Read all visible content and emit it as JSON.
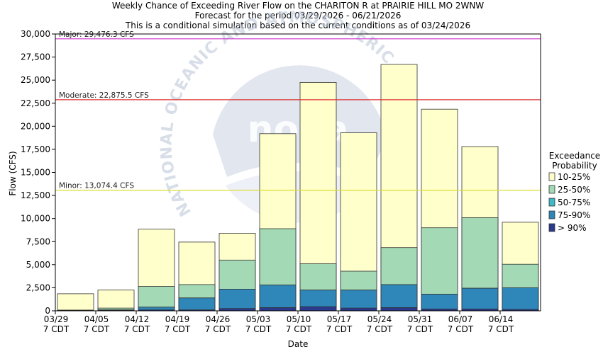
{
  "chart_data": {
    "type": "bar",
    "title_lines": [
      "Weekly Chance of Exceeding River Flow on the CHARITON R at PRAIRIE HILL MO 2WNW",
      "Forecast for the period 03/29/2026 - 06/21/2026",
      "This is a conditional simulation based on the current conditions as of 03/24/2026"
    ],
    "xlabel": "Date",
    "ylabel": "Flow (CFS)",
    "ylim": [
      0,
      30000
    ],
    "yticks": [
      0,
      2500,
      5000,
      7500,
      10000,
      12500,
      15000,
      17500,
      20000,
      22500,
      25000,
      27500,
      30000
    ],
    "ytick_labels": [
      "0",
      "2,500",
      "5,000",
      "7,500",
      "10,000",
      "12,500",
      "15,000",
      "17,500",
      "20,000",
      "22,500",
      "25,000",
      "27,500",
      "30,000"
    ],
    "tick_labels": [
      {
        "date": "03/29",
        "tz": "7 CDT"
      },
      {
        "date": "04/05",
        "tz": "7 CDT"
      },
      {
        "date": "04/12",
        "tz": "7 CDT"
      },
      {
        "date": "04/19",
        "tz": "7 CDT"
      },
      {
        "date": "04/26",
        "tz": "7 CDT"
      },
      {
        "date": "05/03",
        "tz": "7 CDT"
      },
      {
        "date": "05/10",
        "tz": "7 CDT"
      },
      {
        "date": "05/17",
        "tz": "7 CDT"
      },
      {
        "date": "05/24",
        "tz": "7 CDT"
      },
      {
        "date": "05/31",
        "tz": "7 CDT"
      },
      {
        "date": "06/07",
        "tz": "7 CDT"
      },
      {
        "date": "06/14",
        "tz": "7 CDT"
      }
    ],
    "legend_title": [
      "Exceedance",
      "Probability"
    ],
    "series": [
      {
        "name": "> 90%",
        "color": "#2b3a8c",
        "values": [
          30,
          50,
          100,
          100,
          250,
          350,
          450,
          300,
          350,
          200,
          200,
          150
        ]
      },
      {
        "name": "75-90%",
        "color": "#2f86b8",
        "values": [
          60,
          100,
          400,
          1400,
          2350,
          2800,
          2250,
          2250,
          2850,
          1800,
          2450,
          2500
        ]
      },
      {
        "name": "50-75%",
        "color": "#3fb8c8",
        "values": [
          60,
          100,
          400,
          1400,
          2350,
          2800,
          2250,
          2250,
          2850,
          1800,
          2450,
          2500
        ]
      },
      {
        "name": "25-50%",
        "color": "#a3d9b5",
        "values": [
          80,
          300,
          2650,
          2850,
          5500,
          8900,
          5100,
          4300,
          6850,
          9000,
          10100,
          5050
        ]
      },
      {
        "name": "10-25%",
        "color": "#ffffcc",
        "values": [
          1850,
          2250,
          8850,
          7450,
          8400,
          19200,
          24750,
          19300,
          26700,
          21850,
          17800,
          9600
        ]
      }
    ],
    "thresholds": [
      {
        "label": "Major: 29,476.3 CFS",
        "value": 29476.3,
        "color": "#cc33cc"
      },
      {
        "label": "Moderate: 22,875.5 CFS",
        "value": 22875.5,
        "color": "#dd3333"
      },
      {
        "label": "Minor: 13,074.4 CFS",
        "value": 13074.4,
        "color": "#dddd33"
      }
    ],
    "grid": false,
    "legend_position": "right"
  },
  "watermark": {
    "arc_text": "NATIONAL OCEANIC AND ATMOSPHERIC",
    "center_text": "noaa"
  }
}
